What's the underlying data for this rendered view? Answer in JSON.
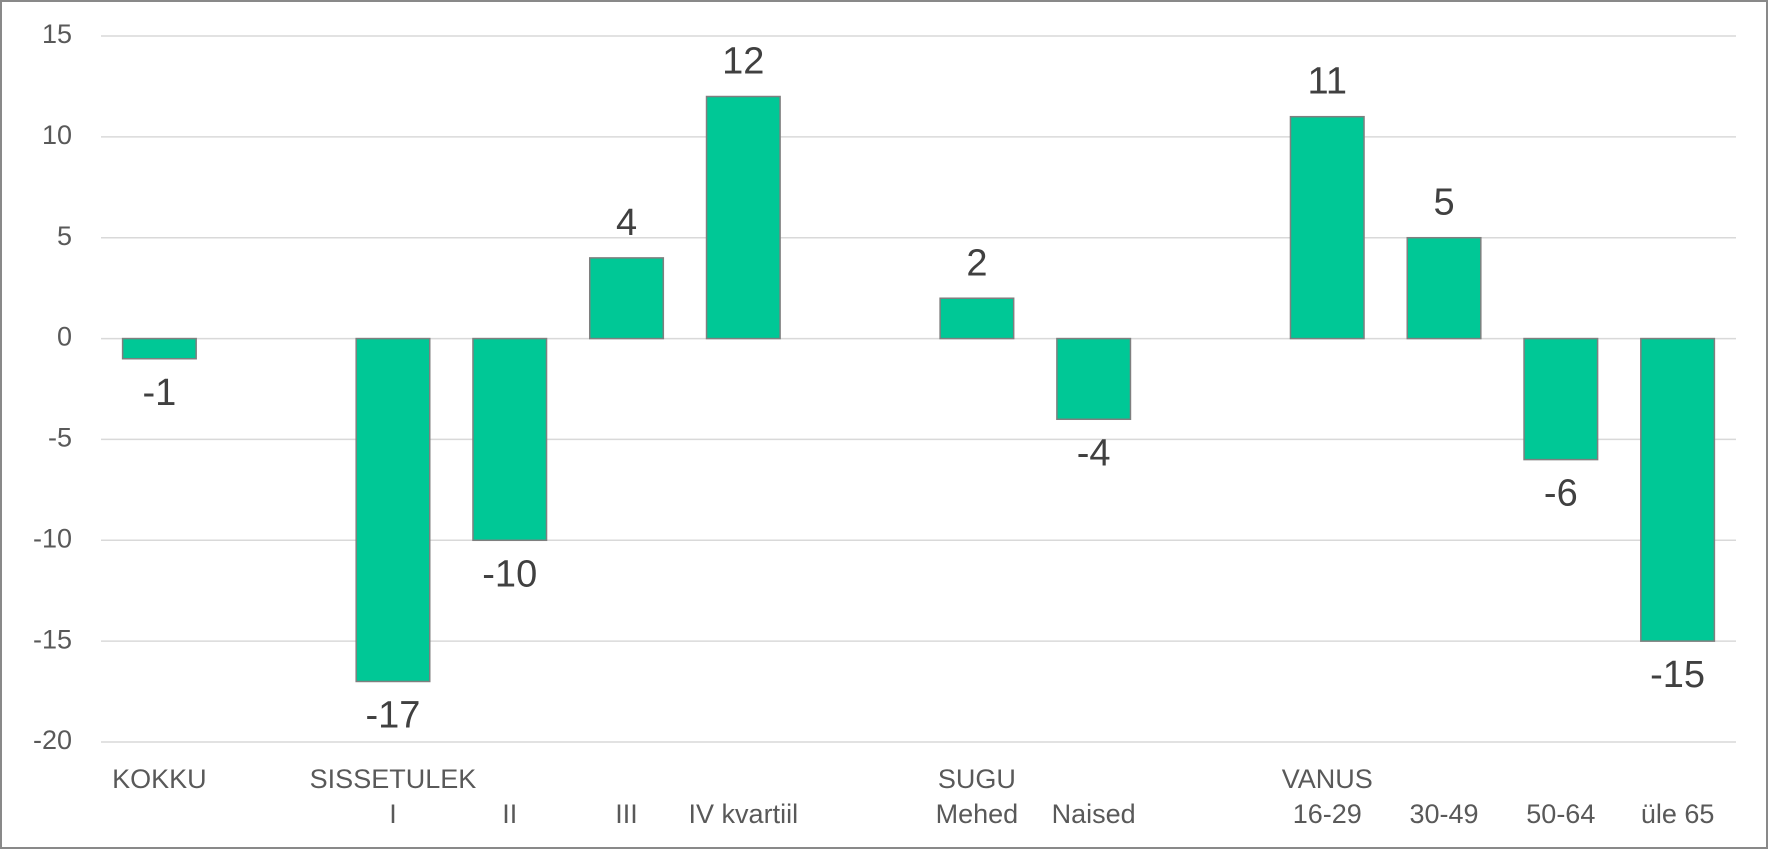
{
  "chart_data": {
    "type": "bar",
    "group_labels": [
      "KOKKU",
      null,
      "SISSETULEK",
      null,
      null,
      null,
      null,
      "SUGU",
      null,
      null,
      "VANUS",
      null,
      null,
      null
    ],
    "categories": [
      null,
      null,
      "I",
      "II",
      "III",
      "IV kvartiil",
      null,
      "Mehed",
      "Naised",
      null,
      "16-29",
      "30-49",
      "50-64",
      "üle 65"
    ],
    "values": [
      -1,
      null,
      -17,
      -10,
      4,
      12,
      null,
      2,
      -4,
      null,
      11,
      5,
      -6,
      -15
    ],
    "color": "#00c896",
    "ylim": [
      -20,
      15
    ],
    "yticks": [
      -20,
      -15,
      -10,
      -5,
      0,
      5,
      10,
      15
    ],
    "grid": true
  }
}
